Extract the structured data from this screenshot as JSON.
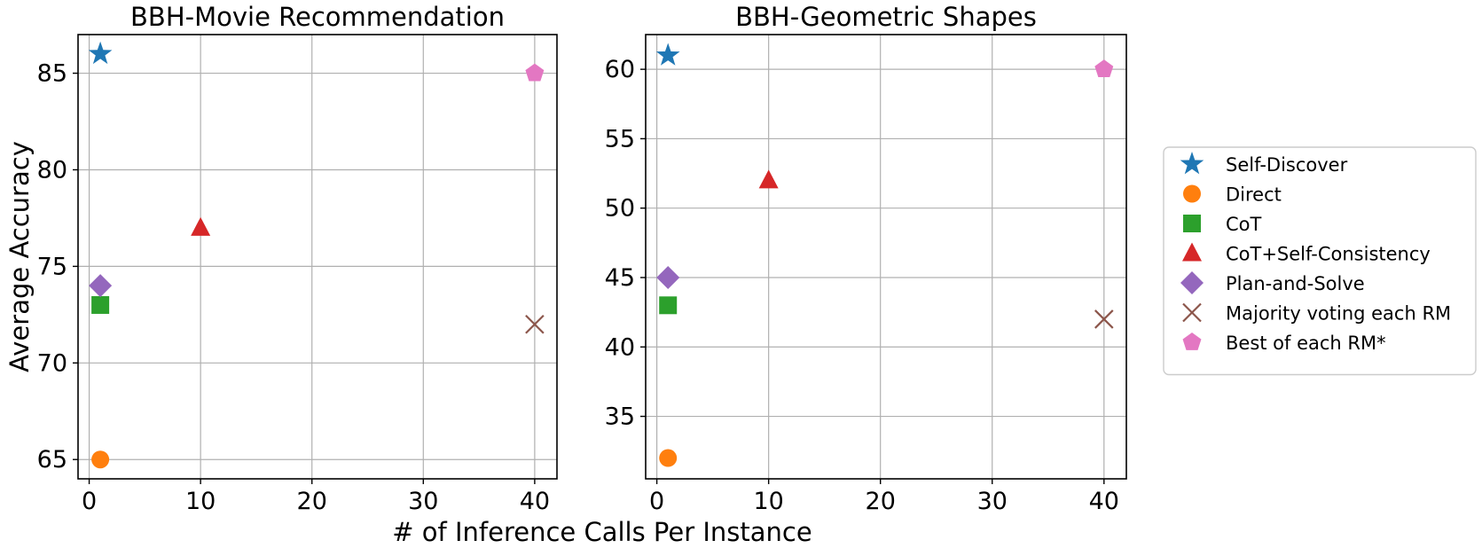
{
  "chart_data": {
    "type": "scatter",
    "shared_xlabel": "# of Inference Calls Per Instance",
    "shared_ylabel": "Average Accuracy",
    "legend_position": "right",
    "grid": true,
    "series_styles": [
      {
        "name": "Self-Discover",
        "marker": "star",
        "color": "#1f77b4"
      },
      {
        "name": "Direct",
        "marker": "circle",
        "color": "#ff7f0e"
      },
      {
        "name": "CoT",
        "marker": "square",
        "color": "#2ca02c"
      },
      {
        "name": "CoT+Self-Consistency",
        "marker": "triangle",
        "color": "#d62728"
      },
      {
        "name": "Plan-and-Solve",
        "marker": "diamond",
        "color": "#9467bd"
      },
      {
        "name": "Majority voting each RM",
        "marker": "x",
        "color": "#8c564b"
      },
      {
        "name": "Best of each RM*",
        "marker": "pentagon",
        "color": "#e377c2"
      }
    ],
    "panels": [
      {
        "title": "BBH-Movie Recommendation",
        "xlim": [
          -1,
          42
        ],
        "ylim": [
          64,
          87
        ],
        "xticks": [
          0,
          10,
          20,
          30,
          40
        ],
        "yticks": [
          65,
          70,
          75,
          80,
          85
        ],
        "points": [
          {
            "series": "Self-Discover",
            "x": 1,
            "y": 86
          },
          {
            "series": "Direct",
            "x": 1,
            "y": 65
          },
          {
            "series": "CoT",
            "x": 1,
            "y": 73
          },
          {
            "series": "CoT+Self-Consistency",
            "x": 10,
            "y": 77
          },
          {
            "series": "Plan-and-Solve",
            "x": 1,
            "y": 74
          },
          {
            "series": "Majority voting each RM",
            "x": 40,
            "y": 72
          },
          {
            "series": "Best of each RM*",
            "x": 40,
            "y": 85
          }
        ]
      },
      {
        "title": "BBH-Geometric Shapes",
        "xlim": [
          -1,
          42
        ],
        "ylim": [
          30.5,
          62.5
        ],
        "xticks": [
          0,
          10,
          20,
          30,
          40
        ],
        "yticks": [
          35,
          40,
          45,
          50,
          55,
          60
        ],
        "points": [
          {
            "series": "Self-Discover",
            "x": 1,
            "y": 61
          },
          {
            "series": "Direct",
            "x": 1,
            "y": 32
          },
          {
            "series": "CoT",
            "x": 1,
            "y": 43
          },
          {
            "series": "CoT+Self-Consistency",
            "x": 10,
            "y": 52
          },
          {
            "series": "Plan-and-Solve",
            "x": 1,
            "y": 45
          },
          {
            "series": "Majority voting each RM",
            "x": 40,
            "y": 42
          },
          {
            "series": "Best of each RM*",
            "x": 40,
            "y": 60
          }
        ]
      }
    ]
  }
}
